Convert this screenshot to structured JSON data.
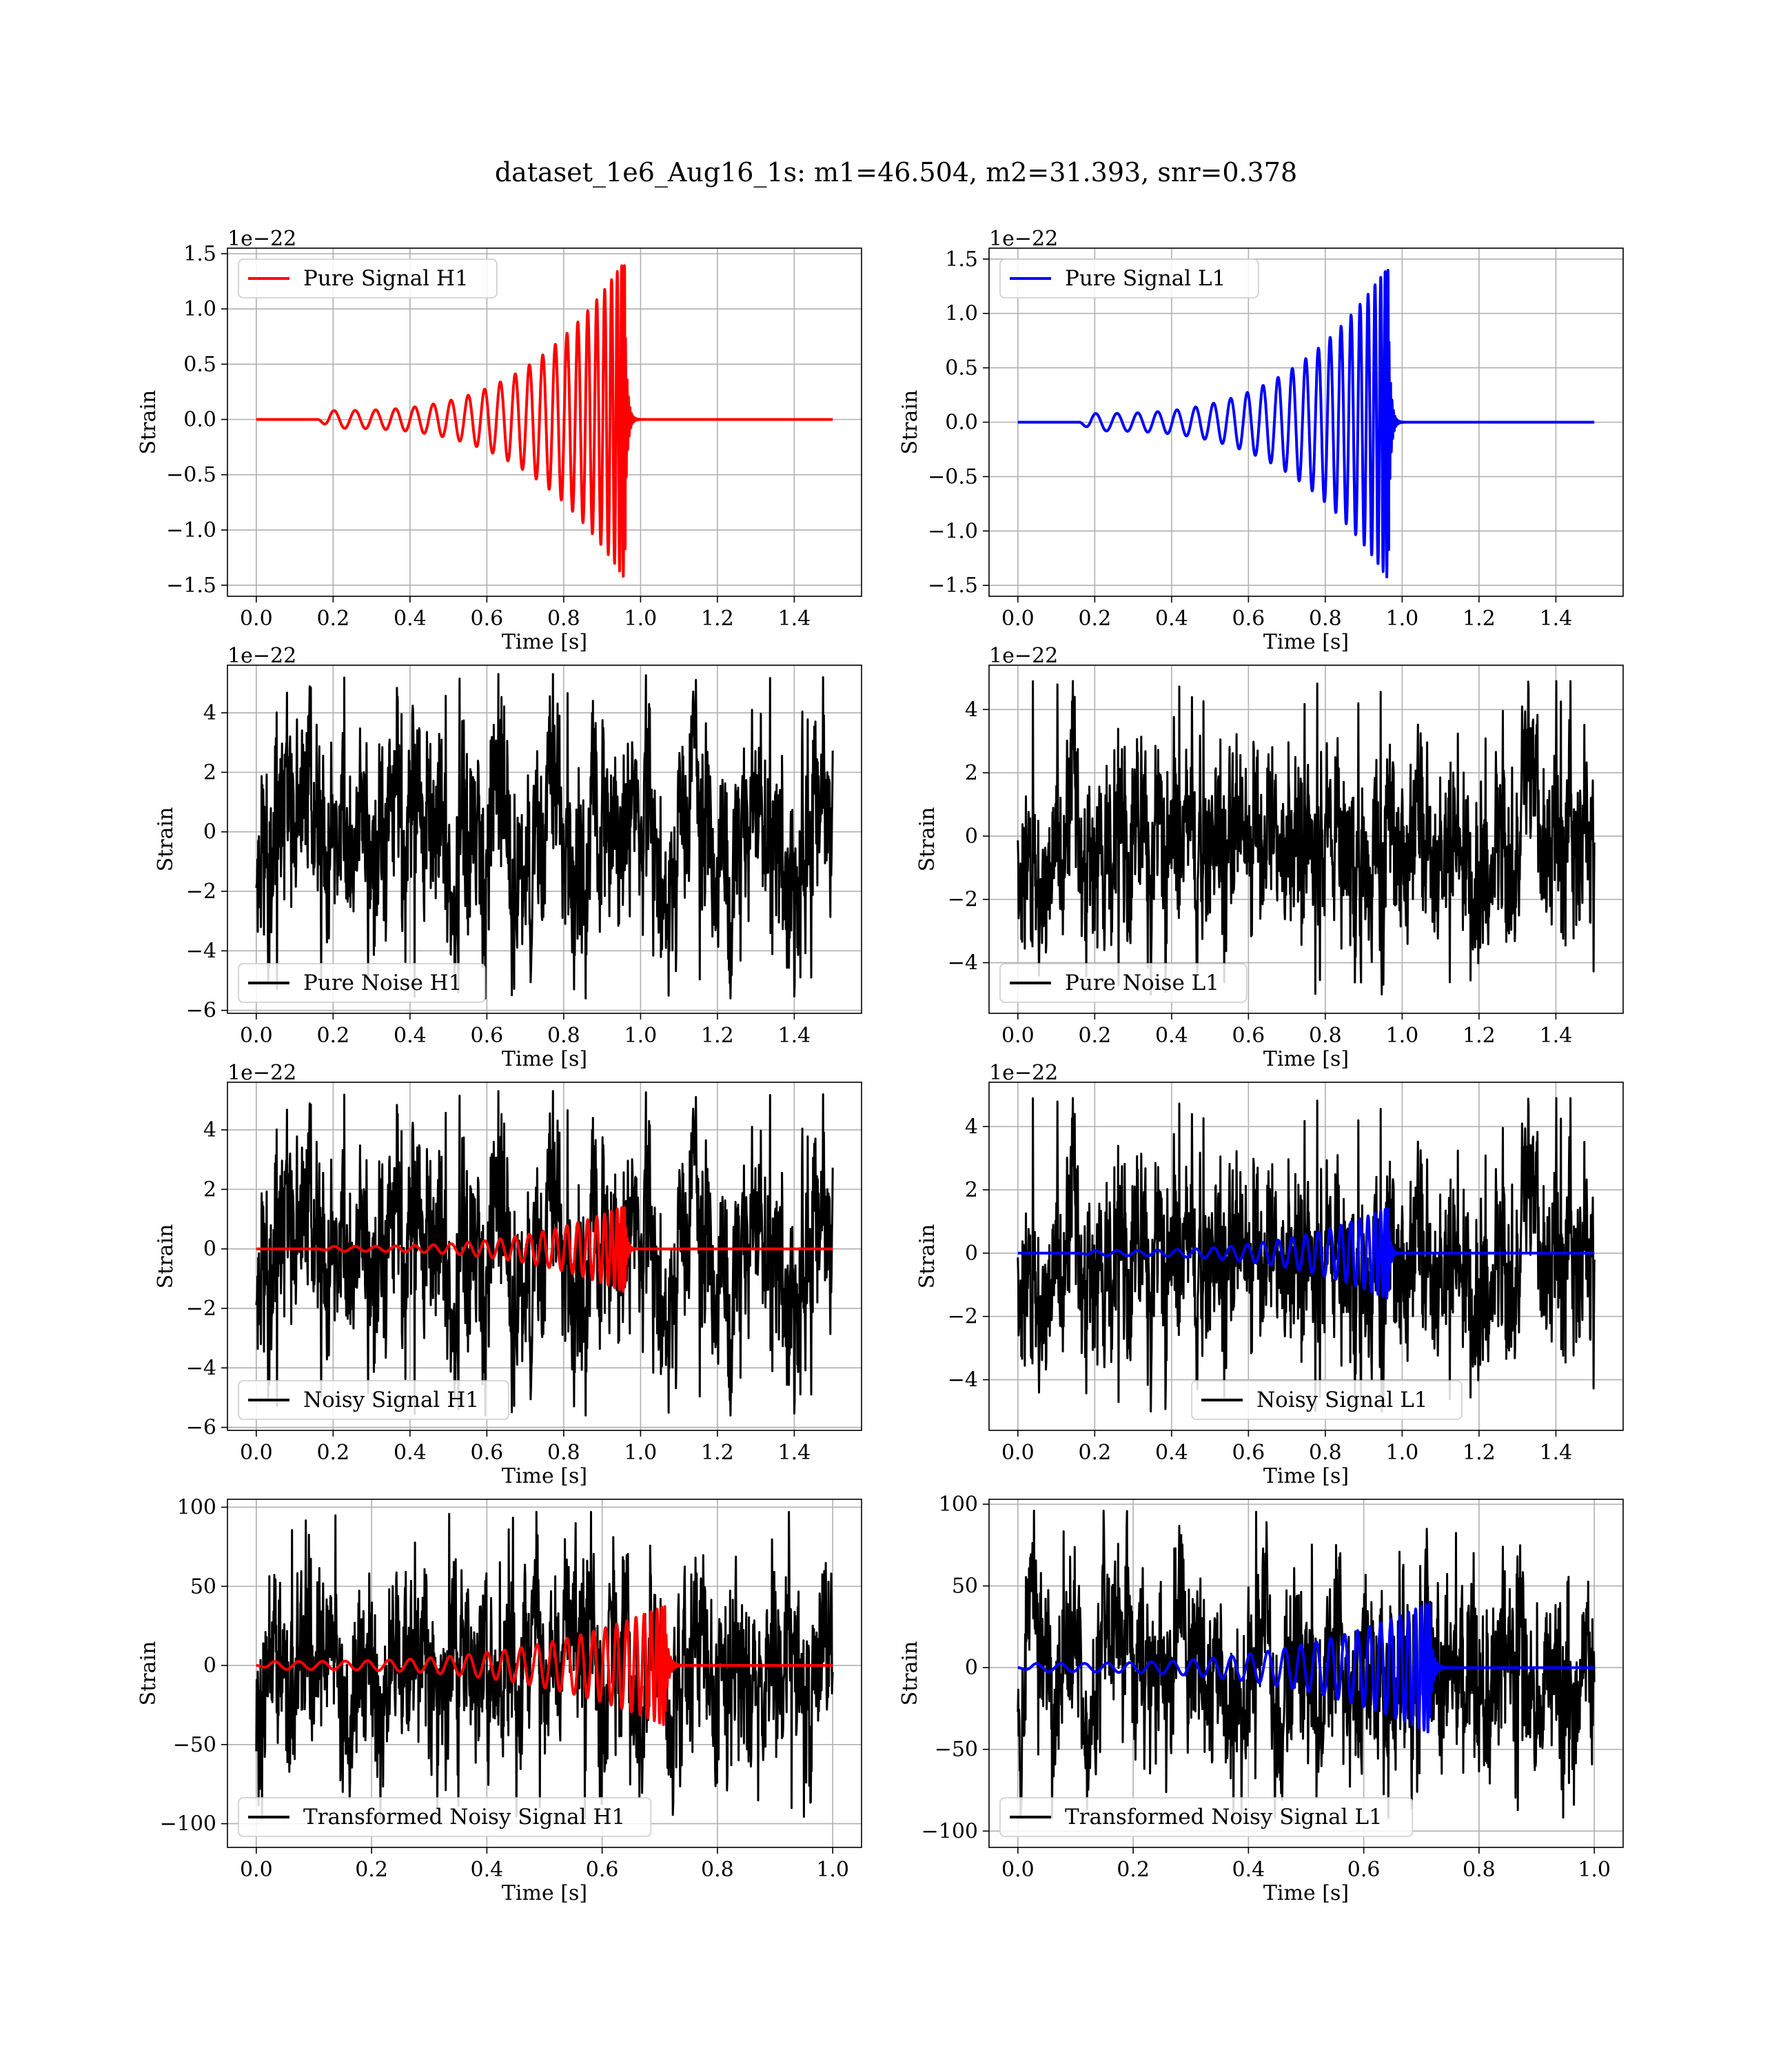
{
  "figure": {
    "title": "dataset_1e6_Aug16_1s: m1=46.504, m2=31.393, snr=0.378",
    "colors": {
      "h1": "#ff0000",
      "l1": "#0000ff",
      "noise": "#000000",
      "grid": "#b0b0b0"
    }
  },
  "chart_data": [
    {
      "type": "line",
      "detector": "H1",
      "kind": "signal",
      "legend": [
        "Pure Signal H1"
      ],
      "legend_loc": "upper-left",
      "xlabel": "Time [s]",
      "ylabel": "Strain",
      "offset_text": "1e−22",
      "xlim": [
        -0.075,
        1.575
      ],
      "ylim": [
        -1.6,
        1.55
      ],
      "xticks": [
        0.0,
        0.2,
        0.4,
        0.6,
        0.8,
        1.0,
        1.2,
        1.4
      ],
      "xtick_labels": [
        "0.0",
        "0.2",
        "0.4",
        "0.6",
        "0.8",
        "1.0",
        "1.2",
        "1.4"
      ],
      "yticks": [
        -1.5,
        -1.0,
        -0.5,
        0.0,
        0.5,
        1.0,
        1.5
      ],
      "ytick_labels": [
        "−1.5",
        "−1.0",
        "−0.5",
        "0.0",
        "0.5",
        "1.0",
        "1.5"
      ],
      "grid": true,
      "series": [
        {
          "name": "Pure Signal H1",
          "color": "#ff0000",
          "waveform": {
            "t_start": 0.0,
            "t_end": 1.5,
            "t_onset": 0.16,
            "t_merge": 0.96,
            "amp_peak": 1.45,
            "amp_early": 0.08,
            "cycles": 23
          }
        }
      ]
    },
    {
      "type": "line",
      "detector": "L1",
      "kind": "signal",
      "legend": [
        "Pure Signal L1"
      ],
      "legend_loc": "upper-left",
      "xlabel": "Time [s]",
      "ylabel": "Strain",
      "offset_text": "1e−22",
      "xlim": [
        -0.075,
        1.575
      ],
      "ylim": [
        -1.6,
        1.6
      ],
      "xticks": [
        0.0,
        0.2,
        0.4,
        0.6,
        0.8,
        1.0,
        1.2,
        1.4
      ],
      "xtick_labels": [
        "0.0",
        "0.2",
        "0.4",
        "0.6",
        "0.8",
        "1.0",
        "1.2",
        "1.4"
      ],
      "yticks": [
        -1.5,
        -1.0,
        -0.5,
        0.0,
        0.5,
        1.0,
        1.5
      ],
      "ytick_labels": [
        "−1.5",
        "−1.0",
        "−0.5",
        "0.0",
        "0.5",
        "1.0",
        "1.5"
      ],
      "grid": true,
      "series": [
        {
          "name": "Pure Signal L1",
          "color": "#0000ff",
          "waveform": {
            "t_start": 0.0,
            "t_end": 1.5,
            "t_onset": 0.16,
            "t_merge": 0.965,
            "amp_peak": 1.45,
            "amp_early": 0.08,
            "cycles": 23
          }
        }
      ]
    },
    {
      "type": "line",
      "detector": "H1",
      "kind": "noise",
      "legend": [
        "Pure Noise H1"
      ],
      "legend_loc": "lower-left",
      "xlabel": "Time [s]",
      "ylabel": "Strain",
      "offset_text": "1e−22",
      "xlim": [
        -0.075,
        1.575
      ],
      "ylim": [
        -6.1,
        5.6
      ],
      "xticks": [
        0.0,
        0.2,
        0.4,
        0.6,
        0.8,
        1.0,
        1.2,
        1.4
      ],
      "xtick_labels": [
        "0.0",
        "0.2",
        "0.4",
        "0.6",
        "0.8",
        "1.0",
        "1.2",
        "1.4"
      ],
      "yticks": [
        -6,
        -4,
        -2,
        0,
        2,
        4
      ],
      "ytick_labels": [
        "−6",
        "−4",
        "−2",
        "0",
        "2",
        "4"
      ],
      "grid": true,
      "series": [
        {
          "name": "Pure Noise H1",
          "color": "#000000",
          "noise": {
            "t_start": 0.0,
            "t_end": 1.5,
            "low": -5.6,
            "high": 5.3,
            "seed": 11
          }
        }
      ]
    },
    {
      "type": "line",
      "detector": "L1",
      "kind": "noise",
      "legend": [
        "Pure Noise L1"
      ],
      "legend_loc": "lower-left",
      "xlabel": "Time [s]",
      "ylabel": "Strain",
      "offset_text": "1e−22",
      "xlim": [
        -0.075,
        1.575
      ],
      "ylim": [
        -5.6,
        5.4
      ],
      "xticks": [
        0.0,
        0.2,
        0.4,
        0.6,
        0.8,
        1.0,
        1.2,
        1.4
      ],
      "xtick_labels": [
        "0.0",
        "0.2",
        "0.4",
        "0.6",
        "0.8",
        "1.0",
        "1.2",
        "1.4"
      ],
      "yticks": [
        -4,
        -2,
        0,
        2,
        4
      ],
      "ytick_labels": [
        "−4",
        "−2",
        "0",
        "2",
        "4"
      ],
      "grid": true,
      "series": [
        {
          "name": "Pure Noise L1",
          "color": "#000000",
          "noise": {
            "t_start": 0.0,
            "t_end": 1.5,
            "low": -5.0,
            "high": 4.9,
            "seed": 23
          }
        }
      ]
    },
    {
      "type": "line",
      "detector": "H1",
      "kind": "noisy",
      "legend": [
        "Noisy Signal H1"
      ],
      "legend_loc": "lower-left",
      "xlabel": "Time [s]",
      "ylabel": "Strain",
      "offset_text": "1e−22",
      "xlim": [
        -0.075,
        1.575
      ],
      "ylim": [
        -6.1,
        5.6
      ],
      "xticks": [
        0.0,
        0.2,
        0.4,
        0.6,
        0.8,
        1.0,
        1.2,
        1.4
      ],
      "xtick_labels": [
        "0.0",
        "0.2",
        "0.4",
        "0.6",
        "0.8",
        "1.0",
        "1.2",
        "1.4"
      ],
      "yticks": [
        -6,
        -4,
        -2,
        0,
        2,
        4
      ],
      "ytick_labels": [
        "−6",
        "−4",
        "−2",
        "0",
        "2",
        "4"
      ],
      "grid": true,
      "series": [
        {
          "name": "Noisy Signal H1",
          "color": "#000000",
          "noise": {
            "t_start": 0.0,
            "t_end": 1.5,
            "low": -5.6,
            "high": 5.3,
            "seed": 11
          }
        },
        {
          "color": "#ff0000",
          "waveform": {
            "t_start": 0.0,
            "t_end": 1.5,
            "t_onset": 0.16,
            "t_merge": 0.96,
            "amp_peak": 1.45,
            "amp_early": 0.08,
            "cycles": 23
          }
        }
      ]
    },
    {
      "type": "line",
      "detector": "L1",
      "kind": "noisy",
      "legend": [
        "Noisy Signal L1"
      ],
      "legend_loc": "lower-center",
      "xlabel": "Time [s]",
      "ylabel": "Strain",
      "offset_text": "1e−22",
      "xlim": [
        -0.075,
        1.575
      ],
      "ylim": [
        -5.6,
        5.4
      ],
      "xticks": [
        0.0,
        0.2,
        0.4,
        0.6,
        0.8,
        1.0,
        1.2,
        1.4
      ],
      "xtick_labels": [
        "0.0",
        "0.2",
        "0.4",
        "0.6",
        "0.8",
        "1.0",
        "1.2",
        "1.4"
      ],
      "yticks": [
        -4,
        -2,
        0,
        2,
        4
      ],
      "ytick_labels": [
        "−4",
        "−2",
        "0",
        "2",
        "4"
      ],
      "grid": true,
      "series": [
        {
          "name": "Noisy Signal L1",
          "color": "#000000",
          "noise": {
            "t_start": 0.0,
            "t_end": 1.5,
            "low": -5.0,
            "high": 4.9,
            "seed": 23
          }
        },
        {
          "color": "#0000ff",
          "waveform": {
            "t_start": 0.0,
            "t_end": 1.5,
            "t_onset": 0.16,
            "t_merge": 0.965,
            "amp_peak": 1.45,
            "amp_early": 0.08,
            "cycles": 23
          }
        }
      ]
    },
    {
      "type": "line",
      "detector": "H1",
      "kind": "transformed",
      "legend": [
        "Transformed Noisy Signal H1"
      ],
      "legend_loc": "lower-left",
      "xlabel": "Time [s]",
      "ylabel": "Strain",
      "offset_text": "",
      "xlim": [
        -0.05,
        1.05
      ],
      "ylim": [
        -115,
        105
      ],
      "xticks": [
        0.0,
        0.2,
        0.4,
        0.6,
        0.8,
        1.0
      ],
      "xtick_labels": [
        "0.0",
        "0.2",
        "0.4",
        "0.6",
        "0.8",
        "1.0"
      ],
      "yticks": [
        -100,
        -50,
        0,
        50,
        100
      ],
      "ytick_labels": [
        "−100",
        "−50",
        "0",
        "50",
        "100"
      ],
      "grid": true,
      "series": [
        {
          "name": "Transformed Noisy Signal H1",
          "color": "#000000",
          "noise": {
            "t_start": 0.0,
            "t_end": 1.0,
            "low": -97,
            "high": 97,
            "seed": 37
          }
        },
        {
          "color": "#ff0000",
          "waveform": {
            "t_start": 0.0,
            "t_end": 1.0,
            "t_onset": 0.0,
            "t_merge": 0.71,
            "amp_peak": 38,
            "amp_early": 2.5,
            "cycles": 27
          }
        }
      ]
    },
    {
      "type": "line",
      "detector": "L1",
      "kind": "transformed",
      "legend": [
        "Transformed Noisy Signal L1"
      ],
      "legend_loc": "lower-left",
      "xlabel": "Time [s]",
      "ylabel": "Strain",
      "offset_text": "",
      "xlim": [
        -0.05,
        1.05
      ],
      "ylim": [
        -110,
        103
      ],
      "xticks": [
        0.0,
        0.2,
        0.4,
        0.6,
        0.8,
        1.0
      ],
      "xtick_labels": [
        "0.0",
        "0.2",
        "0.4",
        "0.6",
        "0.8",
        "1.0"
      ],
      "yticks": [
        -100,
        -50,
        0,
        50,
        100
      ],
      "ytick_labels": [
        "−100",
        "−50",
        "0",
        "50",
        "100"
      ],
      "grid": true,
      "series": [
        {
          "name": "Transformed Noisy Signal L1",
          "color": "#000000",
          "noise": {
            "t_start": 0.0,
            "t_end": 1.0,
            "low": -92,
            "high": 96,
            "seed": 53
          }
        },
        {
          "color": "#0000ff",
          "waveform": {
            "t_start": 0.0,
            "t_end": 1.0,
            "t_onset": 0.0,
            "t_merge": 0.715,
            "amp_peak": 40,
            "amp_early": 2.5,
            "cycles": 27
          }
        }
      ]
    }
  ]
}
